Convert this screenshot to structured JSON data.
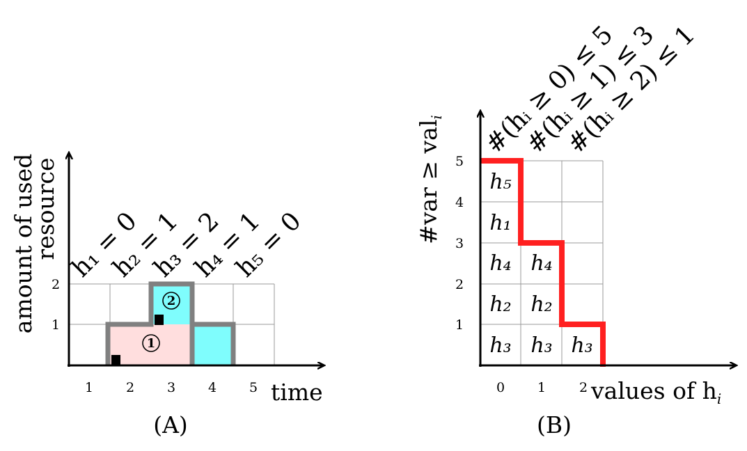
{
  "panel_a": {
    "caption": "(A)",
    "y_label_line1": "amount of used",
    "y_label_line2": "resource",
    "x_label": "time",
    "x_ticks": [
      "1",
      "2",
      "3",
      "4",
      "5"
    ],
    "y_ticks": [
      "1",
      "2"
    ],
    "height_labels": [
      "h₁ = 0",
      "h₂ = 1",
      "h₃ = 2",
      "h₄ = 1",
      "h₅ = 0"
    ],
    "task_1_label": "1",
    "task_2_label": "2",
    "colors": {
      "task_1": "#ffdede",
      "task_2": "#7ffdfd",
      "outline": "#808080",
      "grid": "#999999"
    }
  },
  "panel_b": {
    "caption": "(B)",
    "y_label_main": "#var ≥ val",
    "y_label_sub": "i",
    "x_label_main": "values of h",
    "x_label_sub": "i",
    "x_ticks": [
      "0",
      "1",
      "2"
    ],
    "y_ticks": [
      "1",
      "2",
      "3",
      "4",
      "5"
    ],
    "constraints": [
      "#(hᵢ ≥ 0) ≤ 5",
      "#(hᵢ ≥ 1) ≤ 3",
      "#(hᵢ ≥ 2) ≤ 1"
    ],
    "column_0": [
      "h₃",
      "h₂",
      "h₄",
      "h₁",
      "h₅"
    ],
    "column_1": [
      "h₃",
      "h₂",
      "h₄"
    ],
    "column_2": [
      "h₃"
    ],
    "colors": {
      "staircase": "#ff2020",
      "grid": "#999999"
    }
  }
}
